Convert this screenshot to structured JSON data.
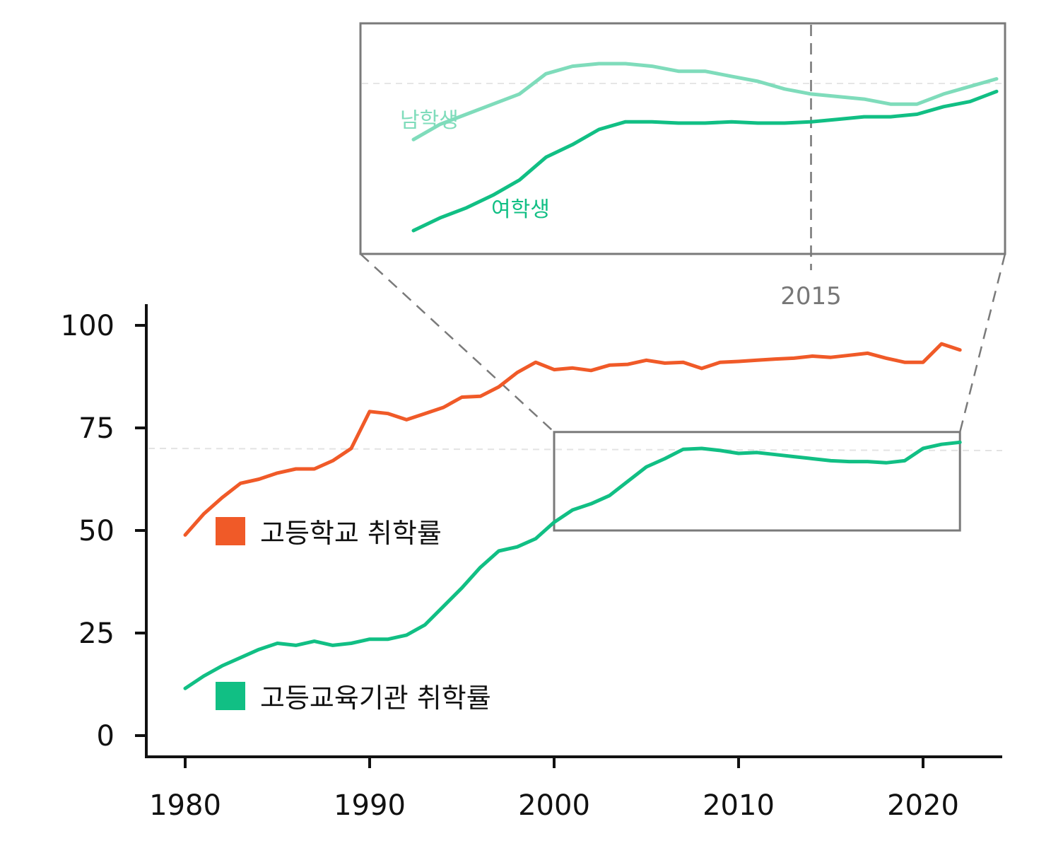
{
  "chart_data": {
    "type": "line",
    "title": "",
    "xlabel": "",
    "ylabel": "",
    "xlim": [
      1978,
      2024
    ],
    "ylim": [
      -5,
      105
    ],
    "x_ticks": [
      "1980",
      "1990",
      "2000",
      "2010",
      "2020"
    ],
    "y_ticks": [
      "0",
      "25",
      "50",
      "75",
      "100"
    ],
    "reference_line_y": 70,
    "x": [
      1980,
      1981,
      1982,
      1983,
      1984,
      1985,
      1986,
      1987,
      1988,
      1989,
      1990,
      1991,
      1992,
      1993,
      1994,
      1995,
      1996,
      1997,
      1998,
      1999,
      2000,
      2001,
      2002,
      2003,
      2004,
      2005,
      2006,
      2007,
      2008,
      2009,
      2010,
      2011,
      2012,
      2013,
      2014,
      2015,
      2016,
      2017,
      2018,
      2019,
      2020,
      2021,
      2022
    ],
    "series": [
      {
        "name": "고등학교 취학률",
        "color": "#f05a28",
        "values": [
          48.9,
          54.0,
          58.0,
          61.5,
          62.5,
          64.0,
          65.0,
          65.0,
          67.0,
          70.0,
          79.0,
          78.5,
          77.0,
          78.5,
          80.0,
          82.5,
          82.7,
          85.0,
          88.5,
          91.0,
          89.2,
          89.6,
          89.0,
          90.3,
          90.5,
          91.5,
          90.8,
          91.0,
          89.5,
          91.0,
          91.2,
          91.5,
          91.8,
          92.0,
          92.5,
          92.2,
          92.7,
          93.2,
          92.0,
          91.0,
          91.0,
          95.5,
          94.0
        ]
      },
      {
        "name": "고등교육기관 취학률",
        "color": "#11bf84",
        "values": [
          11.5,
          14.5,
          17.0,
          19.0,
          21.0,
          22.5,
          22.0,
          23.0,
          22.0,
          22.5,
          23.5,
          23.5,
          24.5,
          27.0,
          31.5,
          36.0,
          41.0,
          45.0,
          46.0,
          48.0,
          52.0,
          55.0,
          56.5,
          58.5,
          62.0,
          65.5,
          67.5,
          69.8,
          70.0,
          69.5,
          68.8,
          69.0,
          68.5,
          68.0,
          67.5,
          67.0,
          66.8,
          66.8,
          66.5,
          67.0,
          70.0,
          71.0,
          71.5
        ]
      }
    ],
    "legend": [
      "고등학교 취학률",
      "고등교육기관 취학률"
    ],
    "inset": {
      "zoom_x_range": [
        2000,
        2022
      ],
      "zoom_y_range": [
        50,
        74
      ],
      "marked_year": "2015",
      "x": [
        2000,
        2001,
        2002,
        2003,
        2004,
        2005,
        2006,
        2007,
        2008,
        2009,
        2010,
        2011,
        2012,
        2013,
        2014,
        2015,
        2016,
        2017,
        2018,
        2019,
        2020,
        2021,
        2022
      ],
      "series": [
        {
          "name": "남학생",
          "color": "#7fdcbb",
          "values": [
            42,
            48,
            52,
            56,
            60,
            68,
            71,
            72,
            72,
            71,
            69,
            69,
            67,
            65,
            62,
            60,
            59,
            58,
            56,
            56,
            60,
            63,
            66
          ]
        },
        {
          "name": "여학생",
          "color": "#11bf84",
          "values": [
            6,
            11,
            15,
            20,
            26,
            35,
            40,
            46,
            49,
            49,
            48.5,
            48.5,
            49,
            48.5,
            48.5,
            49,
            50,
            51,
            51,
            52,
            55,
            57,
            61
          ]
        }
      ]
    }
  }
}
